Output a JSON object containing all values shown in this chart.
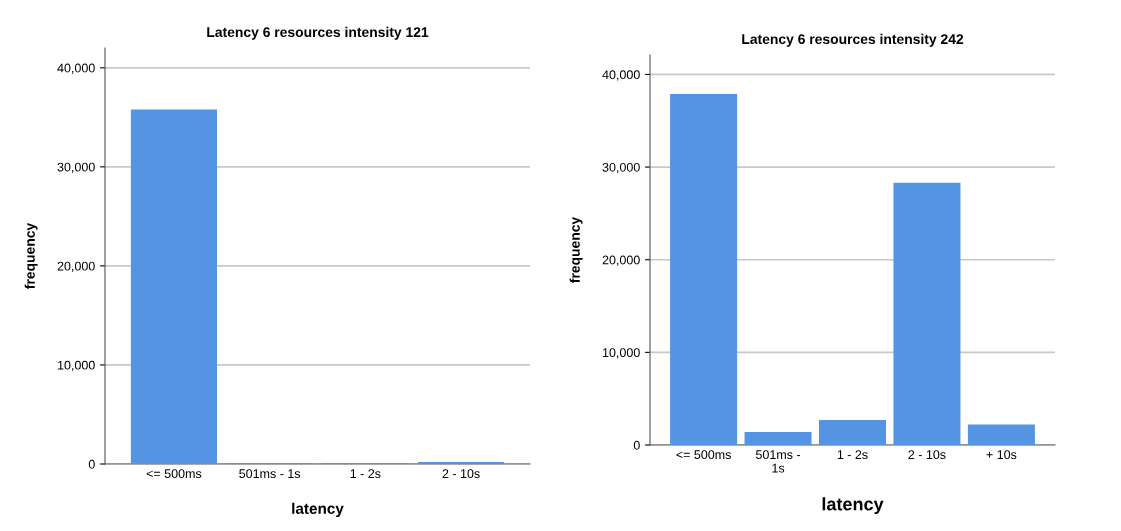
{
  "chart_data": [
    {
      "type": "bar",
      "title": "Latency 6 resources intensity 121",
      "xlabel": "latency",
      "ylabel": "frequency",
      "categories": [
        "<= 500ms",
        "501ms - 1s",
        "1 - 2s",
        "2 - 10s"
      ],
      "values": [
        35800,
        100,
        100,
        200
      ],
      "color": "#5594e2",
      "ylim": [
        0,
        42000
      ],
      "yticks": [
        {
          "value": 0,
          "label": "0"
        },
        {
          "value": 10000,
          "label": "10,000"
        },
        {
          "value": 20000,
          "label": "20,000"
        },
        {
          "value": 30000,
          "label": "30,000"
        },
        {
          "value": 40000,
          "label": "40,000"
        }
      ],
      "grid": "y"
    },
    {
      "type": "bar",
      "title": "Latency 6 resources intensity 242",
      "xlabel": "latency",
      "ylabel": "frequency",
      "categories": [
        "<= 500ms",
        "501ms -\n1s",
        "1 - 2s",
        "2 - 10s",
        "+ 10s"
      ],
      "values": [
        37900,
        1400,
        2700,
        28300,
        2200
      ],
      "color": "#5594e2",
      "ylim": [
        0,
        42100
      ],
      "yticks": [
        {
          "value": 0,
          "label": "0"
        },
        {
          "value": 10000,
          "label": "10,000"
        },
        {
          "value": 20000,
          "label": "20,000"
        },
        {
          "value": 30000,
          "label": "30,000"
        },
        {
          "value": 40000,
          "label": "40,000"
        }
      ],
      "grid": "y"
    }
  ]
}
